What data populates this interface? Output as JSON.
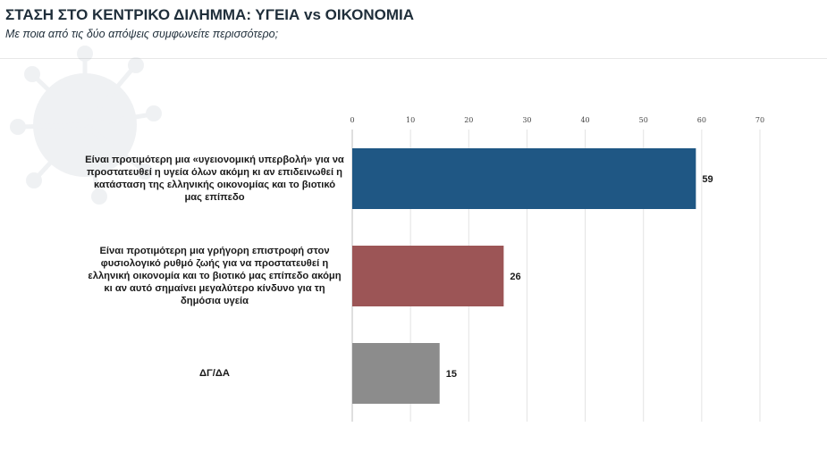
{
  "header": {
    "title": "ΣΤΑΣΗ ΣΤΟ ΚΕΝΤΡΙΚΟ ΔΙΛΗΜΜΑ: ΥΓΕΙΑ vs ΟΙΚΟΝΟΜΙΑ",
    "subtitle": "Με ποια από τις δύο απόψεις συμφωνείτε περισσότερο;"
  },
  "chart_data": {
    "type": "bar",
    "orientation": "horizontal",
    "title": "",
    "xlabel": "",
    "ylabel": "",
    "xlim": [
      0,
      70
    ],
    "ticks": [
      0,
      10,
      20,
      30,
      40,
      50,
      60,
      70
    ],
    "tick_labels": [
      "0",
      "10",
      "20",
      "30",
      "40",
      "50",
      "60",
      "70"
    ],
    "axis_position": "top",
    "grid": true,
    "legend": "none",
    "categories": [
      "Είναι προτιμότερη μια «υγειονομική υπερβολή» για να προστατευθεί η υγεία όλων ακόμη κι αν επιδεινωθεί η κατάσταση της ελληνικής οικονομίας και το βιοτικό μας επίπεδο",
      "Είναι προτιμότερη μια γρήγορη επιστροφή στον φυσιολογικό ρυθμό ζωής για να προστατευθεί η ελληνική οικονομία και το βιοτικό μας επίπεδο ακόμη κι αν αυτό σημαίνει μεγαλύτερο κίνδυνο για τη δημόσια υγεία",
      "ΔΓ/ΔΑ"
    ],
    "values": [
      59,
      26,
      15
    ],
    "value_labels": [
      "59",
      "26",
      "15"
    ],
    "colors": [
      "#1f5784",
      "#9c5556",
      "#8c8c8c"
    ]
  }
}
